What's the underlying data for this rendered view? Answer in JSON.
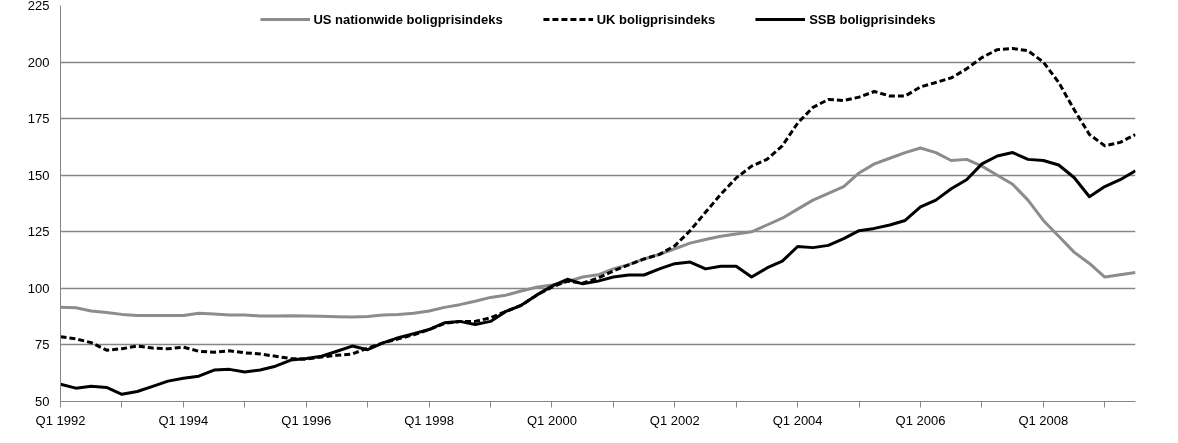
{
  "chart_data": {
    "type": "line",
    "categories": [
      "Q1 1992",
      null,
      null,
      null,
      null,
      null,
      null,
      null,
      "Q1 1994",
      null,
      null,
      null,
      null,
      null,
      null,
      null,
      "Q1 1996",
      null,
      null,
      null,
      null,
      null,
      null,
      null,
      "Q1 1998",
      null,
      null,
      null,
      null,
      null,
      null,
      null,
      "Q1 2000",
      null,
      null,
      null,
      null,
      null,
      null,
      null,
      "Q1 2002",
      null,
      null,
      null,
      null,
      null,
      null,
      null,
      "Q1 2004",
      null,
      null,
      null,
      null,
      null,
      null,
      null,
      "Q1 2006",
      null,
      null,
      null,
      null,
      null,
      null,
      null,
      "Q1 2008",
      null,
      null,
      null,
      null,
      null,
      null
    ],
    "series": [
      {
        "name": "US nationwide boligprisindeks",
        "color": "#8c8c8c",
        "line_style": "solid",
        "values": [
          91.7,
          91.4,
          90,
          89.3,
          88.5,
          88,
          88,
          88,
          88,
          89,
          88.7,
          88.2,
          88.2,
          87.8,
          87.8,
          87.9,
          87.8,
          87.7,
          87.5,
          87.3,
          87.6,
          88.2,
          88.5,
          89,
          90,
          91.6,
          92.8,
          94.3,
          96,
          97,
          98.8,
          100.5,
          101.5,
          103,
          105,
          106,
          108.6,
          110.5,
          113,
          115,
          117.5,
          120,
          121.6,
          123,
          124,
          125,
          128,
          131,
          135,
          139,
          142,
          145,
          151,
          155,
          157.5,
          160,
          162,
          160,
          156.5,
          157,
          154,
          150,
          146,
          139,
          130,
          123,
          116,
          111,
          105,
          106,
          107
        ]
      },
      {
        "name": "UK boligprisindeks",
        "color": "#000000",
        "line_style": "dashed",
        "values": [
          78.6,
          77.7,
          76,
          72.7,
          73.3,
          74.5,
          73.6,
          73.3,
          74,
          72.2,
          71.8,
          72.4,
          71.5,
          71,
          70,
          69,
          68.7,
          69.7,
          70.4,
          71,
          73.6,
          75.9,
          77.7,
          79.5,
          81.8,
          84.5,
          85.4,
          85.4,
          87,
          89.8,
          92.5,
          97,
          100.5,
          103.2,
          102.3,
          104.5,
          107.7,
          110.4,
          113,
          115,
          118.8,
          125.5,
          133.6,
          141.6,
          148.8,
          154,
          157,
          163,
          173,
          180,
          183.5,
          183,
          184.5,
          187,
          185,
          185,
          189,
          191,
          193,
          197,
          202,
          205.5,
          206,
          205,
          200,
          191,
          179,
          168,
          163,
          164.5,
          168
        ]
      },
      {
        "name": "SSB boligprisindeks",
        "color": "#000000",
        "line_style": "solid",
        "values": [
          57.6,
          55.9,
          56.7,
          56.2,
          53.2,
          54.4,
          56.7,
          59,
          60.3,
          61.2,
          63.9,
          64.2,
          63,
          63.9,
          65.6,
          68.3,
          69,
          70,
          72.2,
          74.5,
          72.9,
          75.9,
          78.2,
          80,
          81.8,
          84.8,
          85.4,
          84,
          85.4,
          89.8,
          92.5,
          97,
          101,
          104,
          102,
          103.2,
          105,
          105.9,
          105.9,
          108.6,
          110.9,
          111.6,
          108.6,
          109.8,
          109.8,
          105,
          109,
          112,
          118.5,
          118,
          119,
          122,
          125.5,
          126.5,
          128,
          130,
          136,
          139,
          144,
          148,
          155,
          158.5,
          160,
          157,
          156.5,
          154.5,
          149,
          140.5,
          145,
          148,
          152
        ]
      }
    ],
    "ylim": [
      50,
      225
    ],
    "yticks": [
      50,
      75,
      100,
      125,
      150,
      175,
      200,
      225
    ],
    "grid": "y",
    "legend": "top"
  }
}
